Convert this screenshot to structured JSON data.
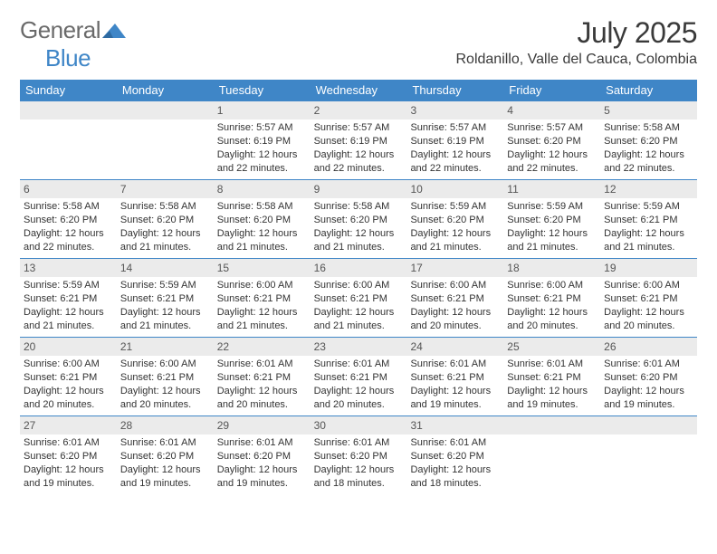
{
  "logo": {
    "text_gray": "General",
    "text_blue": "Blue",
    "triangle_color": "#3f86c7"
  },
  "header": {
    "month_title": "July 2025",
    "location": "Roldanillo, Valle del Cauca, Colombia"
  },
  "colors": {
    "header_bg": "#3f86c7",
    "header_text": "#ffffff",
    "daynum_bg": "#ebebeb",
    "border": "#3f86c7",
    "text": "#333333"
  },
  "day_names": [
    "Sunday",
    "Monday",
    "Tuesday",
    "Wednesday",
    "Thursday",
    "Friday",
    "Saturday"
  ],
  "weeks": [
    [
      {
        "n": "",
        "sunrise": "",
        "sunset": "",
        "daylight": ""
      },
      {
        "n": "",
        "sunrise": "",
        "sunset": "",
        "daylight": ""
      },
      {
        "n": "1",
        "sunrise": "Sunrise: 5:57 AM",
        "sunset": "Sunset: 6:19 PM",
        "daylight": "Daylight: 12 hours and 22 minutes."
      },
      {
        "n": "2",
        "sunrise": "Sunrise: 5:57 AM",
        "sunset": "Sunset: 6:19 PM",
        "daylight": "Daylight: 12 hours and 22 minutes."
      },
      {
        "n": "3",
        "sunrise": "Sunrise: 5:57 AM",
        "sunset": "Sunset: 6:19 PM",
        "daylight": "Daylight: 12 hours and 22 minutes."
      },
      {
        "n": "4",
        "sunrise": "Sunrise: 5:57 AM",
        "sunset": "Sunset: 6:20 PM",
        "daylight": "Daylight: 12 hours and 22 minutes."
      },
      {
        "n": "5",
        "sunrise": "Sunrise: 5:58 AM",
        "sunset": "Sunset: 6:20 PM",
        "daylight": "Daylight: 12 hours and 22 minutes."
      }
    ],
    [
      {
        "n": "6",
        "sunrise": "Sunrise: 5:58 AM",
        "sunset": "Sunset: 6:20 PM",
        "daylight": "Daylight: 12 hours and 22 minutes."
      },
      {
        "n": "7",
        "sunrise": "Sunrise: 5:58 AM",
        "sunset": "Sunset: 6:20 PM",
        "daylight": "Daylight: 12 hours and 21 minutes."
      },
      {
        "n": "8",
        "sunrise": "Sunrise: 5:58 AM",
        "sunset": "Sunset: 6:20 PM",
        "daylight": "Daylight: 12 hours and 21 minutes."
      },
      {
        "n": "9",
        "sunrise": "Sunrise: 5:58 AM",
        "sunset": "Sunset: 6:20 PM",
        "daylight": "Daylight: 12 hours and 21 minutes."
      },
      {
        "n": "10",
        "sunrise": "Sunrise: 5:59 AM",
        "sunset": "Sunset: 6:20 PM",
        "daylight": "Daylight: 12 hours and 21 minutes."
      },
      {
        "n": "11",
        "sunrise": "Sunrise: 5:59 AM",
        "sunset": "Sunset: 6:20 PM",
        "daylight": "Daylight: 12 hours and 21 minutes."
      },
      {
        "n": "12",
        "sunrise": "Sunrise: 5:59 AM",
        "sunset": "Sunset: 6:21 PM",
        "daylight": "Daylight: 12 hours and 21 minutes."
      }
    ],
    [
      {
        "n": "13",
        "sunrise": "Sunrise: 5:59 AM",
        "sunset": "Sunset: 6:21 PM",
        "daylight": "Daylight: 12 hours and 21 minutes."
      },
      {
        "n": "14",
        "sunrise": "Sunrise: 5:59 AM",
        "sunset": "Sunset: 6:21 PM",
        "daylight": "Daylight: 12 hours and 21 minutes."
      },
      {
        "n": "15",
        "sunrise": "Sunrise: 6:00 AM",
        "sunset": "Sunset: 6:21 PM",
        "daylight": "Daylight: 12 hours and 21 minutes."
      },
      {
        "n": "16",
        "sunrise": "Sunrise: 6:00 AM",
        "sunset": "Sunset: 6:21 PM",
        "daylight": "Daylight: 12 hours and 21 minutes."
      },
      {
        "n": "17",
        "sunrise": "Sunrise: 6:00 AM",
        "sunset": "Sunset: 6:21 PM",
        "daylight": "Daylight: 12 hours and 20 minutes."
      },
      {
        "n": "18",
        "sunrise": "Sunrise: 6:00 AM",
        "sunset": "Sunset: 6:21 PM",
        "daylight": "Daylight: 12 hours and 20 minutes."
      },
      {
        "n": "19",
        "sunrise": "Sunrise: 6:00 AM",
        "sunset": "Sunset: 6:21 PM",
        "daylight": "Daylight: 12 hours and 20 minutes."
      }
    ],
    [
      {
        "n": "20",
        "sunrise": "Sunrise: 6:00 AM",
        "sunset": "Sunset: 6:21 PM",
        "daylight": "Daylight: 12 hours and 20 minutes."
      },
      {
        "n": "21",
        "sunrise": "Sunrise: 6:00 AM",
        "sunset": "Sunset: 6:21 PM",
        "daylight": "Daylight: 12 hours and 20 minutes."
      },
      {
        "n": "22",
        "sunrise": "Sunrise: 6:01 AM",
        "sunset": "Sunset: 6:21 PM",
        "daylight": "Daylight: 12 hours and 20 minutes."
      },
      {
        "n": "23",
        "sunrise": "Sunrise: 6:01 AM",
        "sunset": "Sunset: 6:21 PM",
        "daylight": "Daylight: 12 hours and 20 minutes."
      },
      {
        "n": "24",
        "sunrise": "Sunrise: 6:01 AM",
        "sunset": "Sunset: 6:21 PM",
        "daylight": "Daylight: 12 hours and 19 minutes."
      },
      {
        "n": "25",
        "sunrise": "Sunrise: 6:01 AM",
        "sunset": "Sunset: 6:21 PM",
        "daylight": "Daylight: 12 hours and 19 minutes."
      },
      {
        "n": "26",
        "sunrise": "Sunrise: 6:01 AM",
        "sunset": "Sunset: 6:20 PM",
        "daylight": "Daylight: 12 hours and 19 minutes."
      }
    ],
    [
      {
        "n": "27",
        "sunrise": "Sunrise: 6:01 AM",
        "sunset": "Sunset: 6:20 PM",
        "daylight": "Daylight: 12 hours and 19 minutes."
      },
      {
        "n": "28",
        "sunrise": "Sunrise: 6:01 AM",
        "sunset": "Sunset: 6:20 PM",
        "daylight": "Daylight: 12 hours and 19 minutes."
      },
      {
        "n": "29",
        "sunrise": "Sunrise: 6:01 AM",
        "sunset": "Sunset: 6:20 PM",
        "daylight": "Daylight: 12 hours and 19 minutes."
      },
      {
        "n": "30",
        "sunrise": "Sunrise: 6:01 AM",
        "sunset": "Sunset: 6:20 PM",
        "daylight": "Daylight: 12 hours and 18 minutes."
      },
      {
        "n": "31",
        "sunrise": "Sunrise: 6:01 AM",
        "sunset": "Sunset: 6:20 PM",
        "daylight": "Daylight: 12 hours and 18 minutes."
      },
      {
        "n": "",
        "sunrise": "",
        "sunset": "",
        "daylight": ""
      },
      {
        "n": "",
        "sunrise": "",
        "sunset": "",
        "daylight": ""
      }
    ]
  ]
}
